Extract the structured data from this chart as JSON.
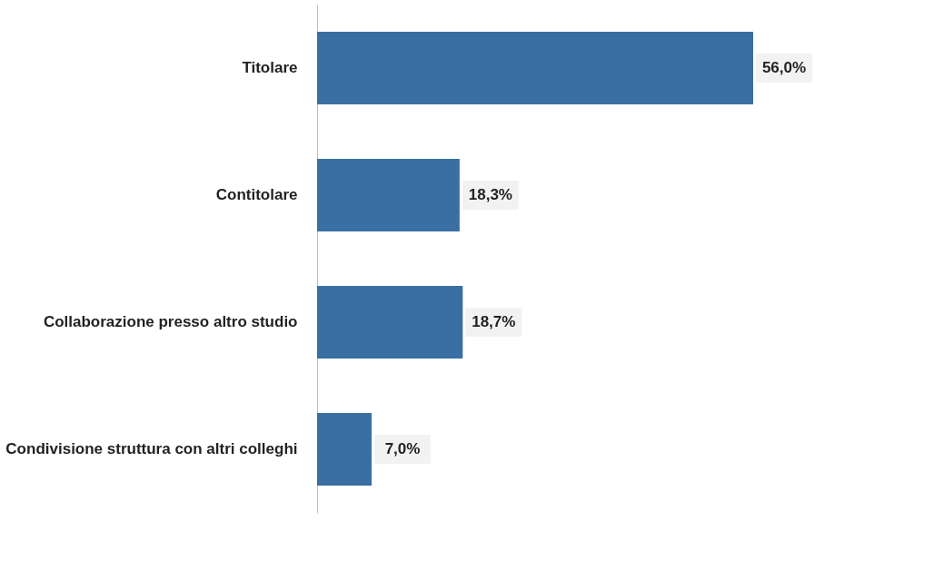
{
  "chart_data": {
    "type": "bar",
    "orientation": "horizontal",
    "categories": [
      "Titolare",
      "Contitolare",
      "Collaborazione presso altro studio",
      "Condivisione struttura con altri colleghi"
    ],
    "values": [
      56.0,
      18.3,
      18.7,
      7.0
    ],
    "value_labels": [
      "56,0%",
      "18,3%",
      "18,7%",
      "7,0%"
    ],
    "color": "#3a6fa3",
    "tick_labels": "y"
  }
}
